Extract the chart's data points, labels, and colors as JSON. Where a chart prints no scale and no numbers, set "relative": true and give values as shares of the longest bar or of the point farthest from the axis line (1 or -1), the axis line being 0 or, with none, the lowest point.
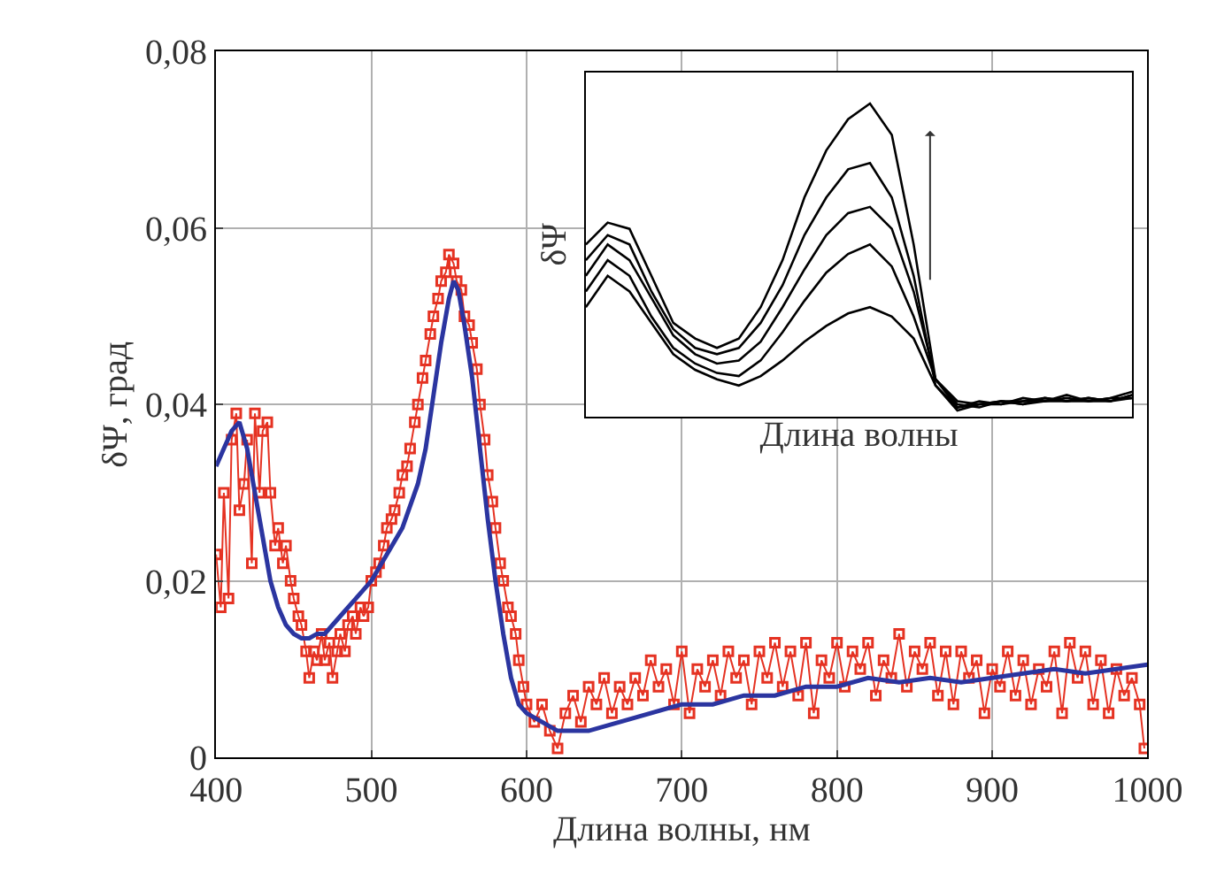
{
  "chart_data": [
    {
      "type": "line",
      "xlabel": "Длина волны, нм",
      "ylabel": "δΨ, град",
      "xlim": [
        400,
        1000
      ],
      "xticks": [
        400,
        500,
        600,
        700,
        800,
        900,
        1000
      ],
      "ylim": [
        0,
        0.08
      ],
      "yticks": [
        {
          "value": 0,
          "label": "0"
        },
        {
          "value": 0.02,
          "label": "0,02"
        },
        {
          "value": 0.04,
          "label": "0,04"
        },
        {
          "value": 0.06,
          "label": "0,06"
        },
        {
          "value": 0.08,
          "label": "0,08"
        }
      ],
      "grid": true,
      "series": [
        {
          "color": "#e53222",
          "marker": "square",
          "x": [
            400,
            403,
            405,
            408,
            410,
            413,
            415,
            418,
            420,
            423,
            425,
            428,
            430,
            433,
            435,
            438,
            440,
            443,
            445,
            448,
            450,
            453,
            455,
            458,
            460,
            463,
            465,
            468,
            470,
            473,
            475,
            478,
            480,
            483,
            485,
            488,
            490,
            493,
            495,
            498,
            500,
            503,
            505,
            508,
            510,
            513,
            515,
            518,
            520,
            523,
            525,
            528,
            530,
            533,
            535,
            538,
            540,
            543,
            545,
            548,
            550,
            553,
            555,
            558,
            560,
            563,
            565,
            568,
            570,
            573,
            575,
            578,
            580,
            583,
            585,
            588,
            590,
            593,
            595,
            598,
            600,
            605,
            610,
            615,
            620,
            625,
            630,
            635,
            640,
            645,
            650,
            655,
            660,
            665,
            670,
            675,
            680,
            685,
            690,
            695,
            700,
            705,
            710,
            715,
            720,
            725,
            730,
            735,
            740,
            745,
            750,
            755,
            760,
            765,
            770,
            775,
            780,
            785,
            790,
            795,
            800,
            805,
            810,
            815,
            820,
            825,
            830,
            835,
            840,
            845,
            850,
            855,
            860,
            865,
            870,
            875,
            880,
            885,
            890,
            895,
            900,
            905,
            910,
            915,
            920,
            925,
            930,
            935,
            940,
            945,
            950,
            955,
            960,
            965,
            970,
            975,
            980,
            985,
            990,
            995,
            998
          ],
          "values": [
            0.023,
            0.017,
            0.03,
            0.018,
            0.036,
            0.039,
            0.028,
            0.031,
            0.036,
            0.022,
            0.039,
            0.03,
            0.037,
            0.038,
            0.03,
            0.024,
            0.026,
            0.022,
            0.024,
            0.02,
            0.018,
            0.016,
            0.015,
            0.012,
            0.009,
            0.012,
            0.011,
            0.014,
            0.011,
            0.013,
            0.009,
            0.012,
            0.014,
            0.012,
            0.015,
            0.016,
            0.014,
            0.017,
            0.016,
            0.017,
            0.02,
            0.021,
            0.022,
            0.024,
            0.026,
            0.027,
            0.028,
            0.03,
            0.032,
            0.033,
            0.035,
            0.038,
            0.04,
            0.043,
            0.045,
            0.048,
            0.05,
            0.052,
            0.054,
            0.055,
            0.057,
            0.056,
            0.054,
            0.053,
            0.05,
            0.049,
            0.047,
            0.044,
            0.04,
            0.036,
            0.032,
            0.029,
            0.026,
            0.022,
            0.02,
            0.017,
            0.016,
            0.014,
            0.011,
            0.008,
            0.006,
            0.004,
            0.006,
            0.003,
            0.001,
            0.005,
            0.007,
            0.004,
            0.008,
            0.006,
            0.009,
            0.005,
            0.008,
            0.006,
            0.009,
            0.007,
            0.011,
            0.008,
            0.01,
            0.006,
            0.012,
            0.005,
            0.01,
            0.008,
            0.011,
            0.007,
            0.012,
            0.009,
            0.011,
            0.006,
            0.012,
            0.009,
            0.013,
            0.008,
            0.012,
            0.007,
            0.013,
            0.005,
            0.011,
            0.009,
            0.013,
            0.008,
            0.012,
            0.01,
            0.013,
            0.007,
            0.011,
            0.009,
            0.014,
            0.008,
            0.012,
            0.01,
            0.013,
            0.007,
            0.012,
            0.006,
            0.012,
            0.009,
            0.011,
            0.005,
            0.01,
            0.008,
            0.012,
            0.007,
            0.011,
            0.006,
            0.01,
            0.008,
            0.012,
            0.005,
            0.013,
            0.009,
            0.012,
            0.006,
            0.011,
            0.005,
            0.01,
            0.007,
            0.009,
            0.006,
            0.001
          ]
        },
        {
          "color": "#2b35a0",
          "marker": "none",
          "x": [
            400,
            405,
            410,
            415,
            420,
            425,
            430,
            435,
            440,
            445,
            450,
            455,
            460,
            465,
            470,
            480,
            490,
            500,
            510,
            520,
            530,
            535,
            540,
            545,
            550,
            553,
            556,
            560,
            565,
            570,
            575,
            580,
            585,
            590,
            595,
            600,
            610,
            620,
            640,
            660,
            680,
            700,
            720,
            740,
            760,
            780,
            800,
            820,
            840,
            860,
            880,
            900,
            920,
            940,
            960,
            980,
            1000
          ],
          "values": [
            0.033,
            0.035,
            0.037,
            0.038,
            0.035,
            0.03,
            0.025,
            0.02,
            0.017,
            0.015,
            0.014,
            0.0135,
            0.0135,
            0.014,
            0.014,
            0.016,
            0.018,
            0.02,
            0.023,
            0.026,
            0.031,
            0.035,
            0.041,
            0.047,
            0.052,
            0.054,
            0.053,
            0.049,
            0.043,
            0.035,
            0.027,
            0.02,
            0.014,
            0.009,
            0.006,
            0.005,
            0.004,
            0.003,
            0.003,
            0.004,
            0.005,
            0.006,
            0.006,
            0.007,
            0.007,
            0.008,
            0.008,
            0.009,
            0.0085,
            0.009,
            0.0085,
            0.009,
            0.0095,
            0.01,
            0.0095,
            0.01,
            0.0105
          ]
        }
      ]
    },
    {
      "type": "line",
      "relative": true,
      "xlabel": "Длина волны",
      "ylabel": "δΨ",
      "grid": false,
      "categories": [
        null,
        null,
        null,
        null,
        null,
        null,
        null,
        null,
        null,
        null,
        null,
        null,
        null,
        null,
        null,
        null,
        null,
        null,
        null,
        null,
        null,
        null,
        null,
        null,
        null,
        null
      ],
      "series": [
        {
          "color": "#000000",
          "values": [
            0.55,
            0.62,
            0.6,
            0.45,
            0.3,
            0.25,
            0.22,
            0.25,
            0.35,
            0.5,
            0.7,
            0.85,
            0.95,
            1.0,
            0.9,
            0.55,
            0.12,
            0.03,
            0.05,
            0.04,
            0.06,
            0.05,
            0.07,
            0.05,
            0.06,
            0.08
          ]
        },
        {
          "color": "#000000",
          "values": [
            0.5,
            0.58,
            0.55,
            0.4,
            0.28,
            0.22,
            0.2,
            0.22,
            0.3,
            0.42,
            0.58,
            0.7,
            0.79,
            0.81,
            0.7,
            0.45,
            0.1,
            0.02,
            0.04,
            0.05,
            0.05,
            0.06,
            0.05,
            0.06,
            0.05,
            0.07
          ]
        },
        {
          "color": "#000000",
          "values": [
            0.45,
            0.55,
            0.5,
            0.38,
            0.26,
            0.2,
            0.17,
            0.18,
            0.24,
            0.35,
            0.47,
            0.58,
            0.65,
            0.67,
            0.6,
            0.4,
            0.12,
            0.04,
            0.03,
            0.05,
            0.04,
            0.06,
            0.05,
            0.05,
            0.06,
            0.06
          ]
        },
        {
          "color": "#000000",
          "values": [
            0.4,
            0.5,
            0.45,
            0.32,
            0.22,
            0.17,
            0.14,
            0.13,
            0.18,
            0.27,
            0.37,
            0.46,
            0.52,
            0.55,
            0.48,
            0.32,
            0.12,
            0.05,
            0.04,
            0.04,
            0.05,
            0.05,
            0.06,
            0.05,
            0.05,
            0.07
          ]
        },
        {
          "color": "#000000",
          "values": [
            0.35,
            0.45,
            0.4,
            0.3,
            0.2,
            0.15,
            0.12,
            0.1,
            0.13,
            0.18,
            0.24,
            0.29,
            0.33,
            0.35,
            0.32,
            0.25,
            0.1,
            0.03,
            0.04,
            0.05,
            0.04,
            0.05,
            0.05,
            0.06,
            0.05,
            0.06
          ]
        }
      ]
    }
  ]
}
